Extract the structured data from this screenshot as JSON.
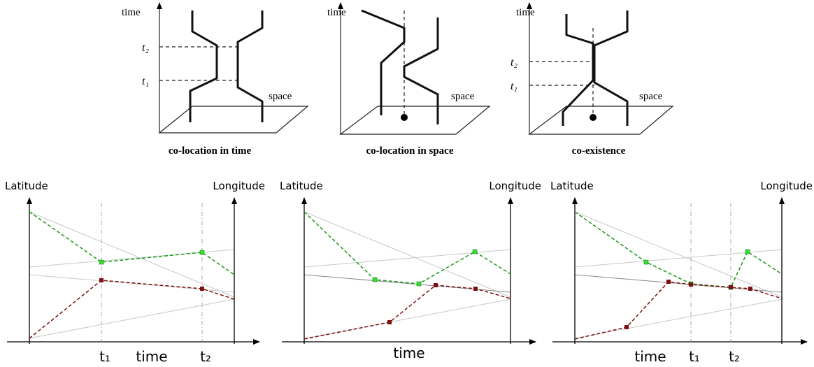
{
  "top_panels": [
    {
      "axis_label": "time",
      "ticks": [
        "t₂",
        "t₁"
      ],
      "space_label": "space",
      "caption": "co-location in time"
    },
    {
      "axis_label": "time",
      "space_label": "space",
      "caption": "co-location in space"
    },
    {
      "axis_label": "time",
      "ticks": [
        "t₂",
        "t₁"
      ],
      "space_label": "space",
      "caption": "co-existence"
    }
  ],
  "bottom_panels": [
    {
      "left_axis": "Latitude",
      "right_axis": "Longitude",
      "time_label": "time",
      "ticks": [
        "t₁",
        "t₂"
      ]
    },
    {
      "left_axis": "Latitude",
      "right_axis": "Longitude",
      "time_label": "time"
    },
    {
      "left_axis": "Latitude",
      "right_axis": "Longitude",
      "time_label": "time",
      "ticks": [
        "t₁",
        "t₂"
      ]
    }
  ]
}
